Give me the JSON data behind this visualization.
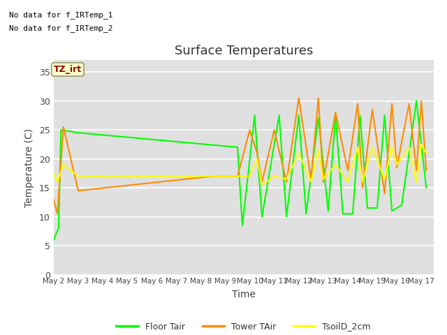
{
  "title": "Surface Temperatures",
  "xlabel": "Time",
  "ylabel": "Temperature (C)",
  "annotation_line1": "No data for f_IRTemp_1",
  "annotation_line2": "No data for f_IRTemp_2",
  "tz_irt_label": "TZ_irt",
  "ylim": [
    0,
    37
  ],
  "yticks": [
    0,
    5,
    10,
    15,
    20,
    25,
    30,
    35
  ],
  "plot_bg_color": "#e0e0e0",
  "grid_color": "white",
  "floor_color": "#00ff00",
  "tower_color": "#ff8c00",
  "tsoil_color": "#ffff00",
  "legend_labels": [
    "Floor Tair",
    "Tower TAir",
    "TsoilD_2cm"
  ],
  "xlim_start": 0,
  "xlim_end": 15.5,
  "x_tick_positions": [
    0,
    1,
    2,
    3,
    4,
    5,
    6,
    7,
    8,
    9,
    10,
    11,
    12,
    13,
    14,
    15
  ],
  "x_tick_labels": [
    "May 2",
    "May 3",
    "May 4",
    "May 5",
    "May 6",
    "May 7",
    "May 8",
    "May 9",
    "May 10",
    "May 11",
    "May 12",
    "May 13",
    "May 14",
    "May 15",
    "May 16",
    "May 17"
  ],
  "floor_x": [
    0.0,
    0.2,
    0.3,
    1.0,
    7.5,
    7.7,
    8.2,
    8.5,
    9.2,
    9.5,
    10.0,
    10.3,
    10.8,
    11.2,
    11.5,
    11.8,
    12.2,
    12.5,
    12.8,
    13.2,
    13.5,
    13.8,
    14.2,
    14.8,
    15.2
  ],
  "floor_y": [
    6.0,
    8.0,
    25.0,
    24.5,
    22.0,
    8.5,
    27.5,
    10.0,
    27.5,
    10.0,
    27.5,
    10.5,
    27.0,
    11.0,
    27.5,
    10.5,
    10.5,
    27.5,
    11.5,
    11.5,
    27.5,
    11.0,
    12.0,
    30.0,
    15.0
  ],
  "tower_x": [
    0.0,
    0.15,
    0.4,
    1.0,
    6.5,
    7.5,
    8.0,
    8.3,
    8.5,
    9.0,
    9.5,
    10.0,
    10.5,
    10.8,
    11.0,
    11.5,
    12.0,
    12.4,
    12.6,
    13.0,
    13.5,
    13.8,
    14.0,
    14.5,
    14.8,
    15.0,
    15.2
  ],
  "tower_y": [
    13.0,
    10.5,
    25.5,
    14.5,
    17.0,
    17.0,
    25.0,
    21.0,
    16.0,
    25.0,
    16.0,
    30.5,
    16.5,
    30.5,
    16.0,
    28.0,
    18.0,
    29.5,
    15.0,
    28.5,
    14.0,
    29.5,
    18.5,
    29.5,
    18.0,
    30.0,
    18.0
  ],
  "tsoil_x": [
    0.0,
    0.15,
    0.4,
    1.0,
    6.5,
    7.5,
    8.0,
    8.3,
    8.5,
    9.0,
    9.5,
    10.0,
    10.5,
    10.8,
    11.0,
    11.5,
    12.0,
    12.4,
    12.6,
    13.0,
    13.5,
    13.8,
    14.0,
    14.5,
    14.8,
    15.0,
    15.2
  ],
  "tsoil_y": [
    17.5,
    16.0,
    19.0,
    17.0,
    17.0,
    17.0,
    17.0,
    20.0,
    15.5,
    17.0,
    16.5,
    21.0,
    16.0,
    21.5,
    16.5,
    19.0,
    16.0,
    22.0,
    16.0,
    22.0,
    16.5,
    22.0,
    19.0,
    22.0,
    16.0,
    22.5,
    21.0
  ]
}
